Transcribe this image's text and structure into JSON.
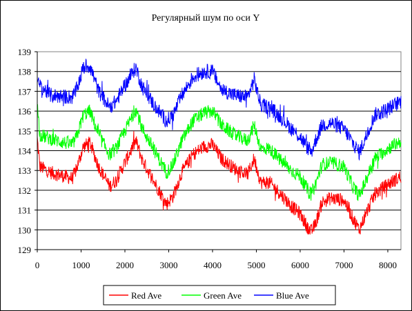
{
  "chart_data": {
    "type": "line",
    "title": "Регулярный шум по оси Y",
    "xlabel": "",
    "ylabel": "",
    "xlim": [
      0,
      8300
    ],
    "ylim": [
      129,
      139
    ],
    "x_ticks": [
      "0",
      "1000",
      "2000",
      "3000",
      "4000",
      "5000",
      "6000",
      "7000",
      "8000"
    ],
    "y_ticks": [
      "139",
      "138",
      "137",
      "136",
      "135",
      "134",
      "133",
      "132",
      "131",
      "130",
      "129"
    ],
    "grid": "horizontal",
    "legend_position": "bottom",
    "series": [
      {
        "name": "Red Ave",
        "color": "#ff0000",
        "noise": 0.35,
        "points": [
          [
            0,
            134.6
          ],
          [
            60,
            133.2
          ],
          [
            300,
            132.9
          ],
          [
            800,
            132.6
          ],
          [
            900,
            133.1
          ],
          [
            1050,
            134.2
          ],
          [
            1200,
            134.4
          ],
          [
            1400,
            133.2
          ],
          [
            1650,
            132.2
          ],
          [
            1800,
            132.5
          ],
          [
            2000,
            133.4
          ],
          [
            2250,
            134.5
          ],
          [
            2400,
            133.5
          ],
          [
            2700,
            132.3
          ],
          [
            2950,
            131.3
          ],
          [
            3100,
            131.7
          ],
          [
            3300,
            132.9
          ],
          [
            3550,
            133.8
          ],
          [
            3800,
            134.2
          ],
          [
            4000,
            134.3
          ],
          [
            4200,
            133.6
          ],
          [
            4500,
            133.1
          ],
          [
            4800,
            132.8
          ],
          [
            4950,
            133.6
          ],
          [
            5100,
            132.4
          ],
          [
            5300,
            132.4
          ],
          [
            5600,
            131.7
          ],
          [
            5800,
            131.2
          ],
          [
            6000,
            130.8
          ],
          [
            6150,
            130.2
          ],
          [
            6250,
            129.9
          ],
          [
            6350,
            130.3
          ],
          [
            6500,
            131.4
          ],
          [
            6700,
            131.6
          ],
          [
            7000,
            131.5
          ],
          [
            7200,
            130.6
          ],
          [
            7350,
            130.0
          ],
          [
            7500,
            130.8
          ],
          [
            7700,
            131.8
          ],
          [
            8000,
            132.3
          ],
          [
            8300,
            132.7
          ]
        ]
      },
      {
        "name": "Green Ave",
        "color": "#00ff00",
        "noise": 0.35,
        "points": [
          [
            0,
            136.3
          ],
          [
            60,
            134.8
          ],
          [
            300,
            134.6
          ],
          [
            800,
            134.3
          ],
          [
            900,
            134.7
          ],
          [
            1050,
            135.8
          ],
          [
            1200,
            136.0
          ],
          [
            1400,
            134.8
          ],
          [
            1650,
            133.8
          ],
          [
            1800,
            134.1
          ],
          [
            2000,
            135.0
          ],
          [
            2250,
            136.1
          ],
          [
            2400,
            135.1
          ],
          [
            2700,
            133.9
          ],
          [
            2950,
            132.9
          ],
          [
            3100,
            133.3
          ],
          [
            3300,
            134.5
          ],
          [
            3550,
            135.5
          ],
          [
            3800,
            135.9
          ],
          [
            4000,
            136.0
          ],
          [
            4200,
            135.3
          ],
          [
            4500,
            134.8
          ],
          [
            4800,
            134.5
          ],
          [
            4950,
            135.3
          ],
          [
            5100,
            134.1
          ],
          [
            5300,
            134.1
          ],
          [
            5600,
            133.4
          ],
          [
            5800,
            133.0
          ],
          [
            6000,
            132.7
          ],
          [
            6150,
            132.1
          ],
          [
            6250,
            131.8
          ],
          [
            6350,
            132.3
          ],
          [
            6500,
            133.3
          ],
          [
            6700,
            133.4
          ],
          [
            7000,
            133.2
          ],
          [
            7200,
            132.2
          ],
          [
            7350,
            131.7
          ],
          [
            7500,
            132.5
          ],
          [
            7700,
            133.6
          ],
          [
            8000,
            134.1
          ],
          [
            8300,
            134.5
          ]
        ]
      },
      {
        "name": "Blue Ave",
        "color": "#0000ff",
        "noise": 0.38,
        "points": [
          [
            0,
            137.4
          ],
          [
            60,
            137.3
          ],
          [
            300,
            136.8
          ],
          [
            800,
            136.7
          ],
          [
            900,
            137.1
          ],
          [
            1050,
            138.2
          ],
          [
            1200,
            138.3
          ],
          [
            1400,
            137.0
          ],
          [
            1650,
            136.2
          ],
          [
            1800,
            136.5
          ],
          [
            2000,
            137.3
          ],
          [
            2250,
            138.2
          ],
          [
            2400,
            137.2
          ],
          [
            2700,
            136.2
          ],
          [
            2950,
            135.5
          ],
          [
            3100,
            135.8
          ],
          [
            3300,
            136.8
          ],
          [
            3550,
            137.7
          ],
          [
            3800,
            138.0
          ],
          [
            4000,
            138.0
          ],
          [
            4200,
            137.1
          ],
          [
            4500,
            136.8
          ],
          [
            4800,
            136.7
          ],
          [
            4950,
            137.6
          ],
          [
            5100,
            136.3
          ],
          [
            5300,
            136.2
          ],
          [
            5600,
            135.6
          ],
          [
            5800,
            135.1
          ],
          [
            6000,
            134.7
          ],
          [
            6150,
            134.2
          ],
          [
            6250,
            133.9
          ],
          [
            6350,
            134.5
          ],
          [
            6500,
            135.3
          ],
          [
            6700,
            135.4
          ],
          [
            7000,
            135.1
          ],
          [
            7200,
            134.4
          ],
          [
            7350,
            133.9
          ],
          [
            7500,
            134.7
          ],
          [
            7700,
            135.8
          ],
          [
            8000,
            136.1
          ],
          [
            8300,
            136.5
          ]
        ]
      }
    ]
  }
}
